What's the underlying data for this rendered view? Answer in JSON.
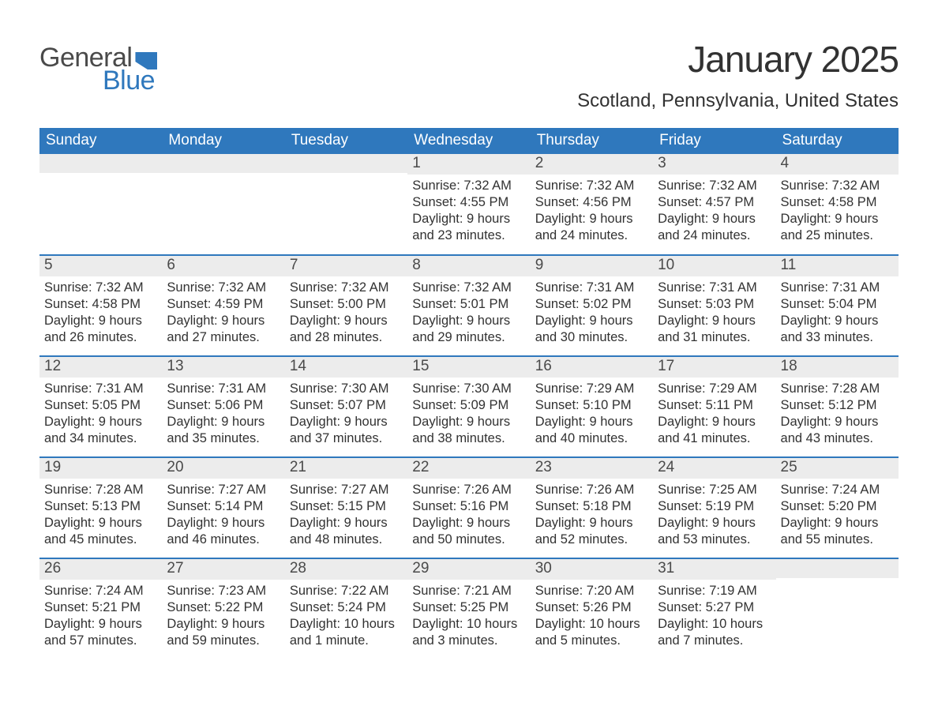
{
  "logo": {
    "word1": "General",
    "word2": "Blue"
  },
  "title": "January 2025",
  "location": "Scotland, Pennsylvania, United States",
  "colors": {
    "brand_blue": "#2f78bd",
    "header_text": "#ffffff",
    "daynum_bg": "#ececec",
    "body_text": "#323232",
    "logo_gray": "#4a4a4a"
  },
  "day_names": [
    "Sunday",
    "Monday",
    "Tuesday",
    "Wednesday",
    "Thursday",
    "Friday",
    "Saturday"
  ],
  "weeks": [
    [
      {
        "n": "",
        "sunrise": "",
        "sunset": "",
        "day1": "",
        "day2": ""
      },
      {
        "n": "",
        "sunrise": "",
        "sunset": "",
        "day1": "",
        "day2": ""
      },
      {
        "n": "",
        "sunrise": "",
        "sunset": "",
        "day1": "",
        "day2": ""
      },
      {
        "n": "1",
        "sunrise": "Sunrise: 7:32 AM",
        "sunset": "Sunset: 4:55 PM",
        "day1": "Daylight: 9 hours",
        "day2": "and 23 minutes."
      },
      {
        "n": "2",
        "sunrise": "Sunrise: 7:32 AM",
        "sunset": "Sunset: 4:56 PM",
        "day1": "Daylight: 9 hours",
        "day2": "and 24 minutes."
      },
      {
        "n": "3",
        "sunrise": "Sunrise: 7:32 AM",
        "sunset": "Sunset: 4:57 PM",
        "day1": "Daylight: 9 hours",
        "day2": "and 24 minutes."
      },
      {
        "n": "4",
        "sunrise": "Sunrise: 7:32 AM",
        "sunset": "Sunset: 4:58 PM",
        "day1": "Daylight: 9 hours",
        "day2": "and 25 minutes."
      }
    ],
    [
      {
        "n": "5",
        "sunrise": "Sunrise: 7:32 AM",
        "sunset": "Sunset: 4:58 PM",
        "day1": "Daylight: 9 hours",
        "day2": "and 26 minutes."
      },
      {
        "n": "6",
        "sunrise": "Sunrise: 7:32 AM",
        "sunset": "Sunset: 4:59 PM",
        "day1": "Daylight: 9 hours",
        "day2": "and 27 minutes."
      },
      {
        "n": "7",
        "sunrise": "Sunrise: 7:32 AM",
        "sunset": "Sunset: 5:00 PM",
        "day1": "Daylight: 9 hours",
        "day2": "and 28 minutes."
      },
      {
        "n": "8",
        "sunrise": "Sunrise: 7:32 AM",
        "sunset": "Sunset: 5:01 PM",
        "day1": "Daylight: 9 hours",
        "day2": "and 29 minutes."
      },
      {
        "n": "9",
        "sunrise": "Sunrise: 7:31 AM",
        "sunset": "Sunset: 5:02 PM",
        "day1": "Daylight: 9 hours",
        "day2": "and 30 minutes."
      },
      {
        "n": "10",
        "sunrise": "Sunrise: 7:31 AM",
        "sunset": "Sunset: 5:03 PM",
        "day1": "Daylight: 9 hours",
        "day2": "and 31 minutes."
      },
      {
        "n": "11",
        "sunrise": "Sunrise: 7:31 AM",
        "sunset": "Sunset: 5:04 PM",
        "day1": "Daylight: 9 hours",
        "day2": "and 33 minutes."
      }
    ],
    [
      {
        "n": "12",
        "sunrise": "Sunrise: 7:31 AM",
        "sunset": "Sunset: 5:05 PM",
        "day1": "Daylight: 9 hours",
        "day2": "and 34 minutes."
      },
      {
        "n": "13",
        "sunrise": "Sunrise: 7:31 AM",
        "sunset": "Sunset: 5:06 PM",
        "day1": "Daylight: 9 hours",
        "day2": "and 35 minutes."
      },
      {
        "n": "14",
        "sunrise": "Sunrise: 7:30 AM",
        "sunset": "Sunset: 5:07 PM",
        "day1": "Daylight: 9 hours",
        "day2": "and 37 minutes."
      },
      {
        "n": "15",
        "sunrise": "Sunrise: 7:30 AM",
        "sunset": "Sunset: 5:09 PM",
        "day1": "Daylight: 9 hours",
        "day2": "and 38 minutes."
      },
      {
        "n": "16",
        "sunrise": "Sunrise: 7:29 AM",
        "sunset": "Sunset: 5:10 PM",
        "day1": "Daylight: 9 hours",
        "day2": "and 40 minutes."
      },
      {
        "n": "17",
        "sunrise": "Sunrise: 7:29 AM",
        "sunset": "Sunset: 5:11 PM",
        "day1": "Daylight: 9 hours",
        "day2": "and 41 minutes."
      },
      {
        "n": "18",
        "sunrise": "Sunrise: 7:28 AM",
        "sunset": "Sunset: 5:12 PM",
        "day1": "Daylight: 9 hours",
        "day2": "and 43 minutes."
      }
    ],
    [
      {
        "n": "19",
        "sunrise": "Sunrise: 7:28 AM",
        "sunset": "Sunset: 5:13 PM",
        "day1": "Daylight: 9 hours",
        "day2": "and 45 minutes."
      },
      {
        "n": "20",
        "sunrise": "Sunrise: 7:27 AM",
        "sunset": "Sunset: 5:14 PM",
        "day1": "Daylight: 9 hours",
        "day2": "and 46 minutes."
      },
      {
        "n": "21",
        "sunrise": "Sunrise: 7:27 AM",
        "sunset": "Sunset: 5:15 PM",
        "day1": "Daylight: 9 hours",
        "day2": "and 48 minutes."
      },
      {
        "n": "22",
        "sunrise": "Sunrise: 7:26 AM",
        "sunset": "Sunset: 5:16 PM",
        "day1": "Daylight: 9 hours",
        "day2": "and 50 minutes."
      },
      {
        "n": "23",
        "sunrise": "Sunrise: 7:26 AM",
        "sunset": "Sunset: 5:18 PM",
        "day1": "Daylight: 9 hours",
        "day2": "and 52 minutes."
      },
      {
        "n": "24",
        "sunrise": "Sunrise: 7:25 AM",
        "sunset": "Sunset: 5:19 PM",
        "day1": "Daylight: 9 hours",
        "day2": "and 53 minutes."
      },
      {
        "n": "25",
        "sunrise": "Sunrise: 7:24 AM",
        "sunset": "Sunset: 5:20 PM",
        "day1": "Daylight: 9 hours",
        "day2": "and 55 minutes."
      }
    ],
    [
      {
        "n": "26",
        "sunrise": "Sunrise: 7:24 AM",
        "sunset": "Sunset: 5:21 PM",
        "day1": "Daylight: 9 hours",
        "day2": "and 57 minutes."
      },
      {
        "n": "27",
        "sunrise": "Sunrise: 7:23 AM",
        "sunset": "Sunset: 5:22 PM",
        "day1": "Daylight: 9 hours",
        "day2": "and 59 minutes."
      },
      {
        "n": "28",
        "sunrise": "Sunrise: 7:22 AM",
        "sunset": "Sunset: 5:24 PM",
        "day1": "Daylight: 10 hours",
        "day2": "and 1 minute."
      },
      {
        "n": "29",
        "sunrise": "Sunrise: 7:21 AM",
        "sunset": "Sunset: 5:25 PM",
        "day1": "Daylight: 10 hours",
        "day2": "and 3 minutes."
      },
      {
        "n": "30",
        "sunrise": "Sunrise: 7:20 AM",
        "sunset": "Sunset: 5:26 PM",
        "day1": "Daylight: 10 hours",
        "day2": "and 5 minutes."
      },
      {
        "n": "31",
        "sunrise": "Sunrise: 7:19 AM",
        "sunset": "Sunset: 5:27 PM",
        "day1": "Daylight: 10 hours",
        "day2": "and 7 minutes."
      },
      {
        "n": "",
        "sunrise": "",
        "sunset": "",
        "day1": "",
        "day2": ""
      }
    ]
  ]
}
